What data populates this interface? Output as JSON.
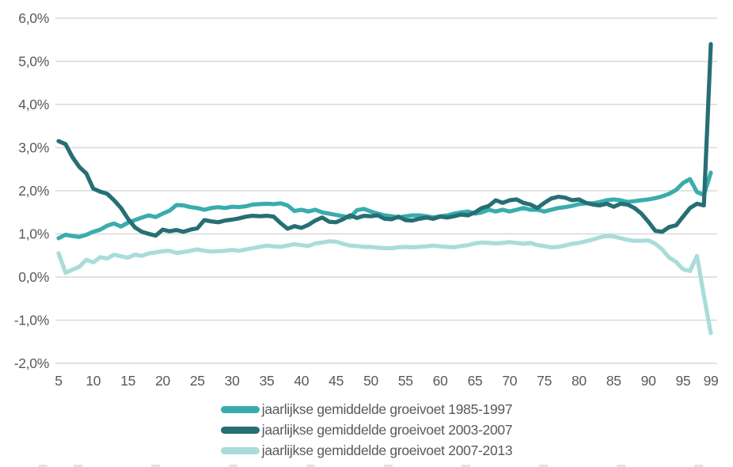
{
  "chart_data": {
    "type": "line",
    "title": "",
    "xlabel": "",
    "ylabel": "",
    "xlim": [
      5,
      99
    ],
    "ylim": [
      -2,
      6
    ],
    "grid": "horizontal-only",
    "legend_position": "bottom-center",
    "x_tick_values": [
      5,
      10,
      15,
      20,
      25,
      30,
      35,
      40,
      45,
      50,
      55,
      60,
      65,
      70,
      75,
      80,
      85,
      90,
      95,
      99
    ],
    "x_tick_labels": [
      "5",
      "10",
      "15",
      "20",
      "25",
      "30",
      "35",
      "40",
      "45",
      "50",
      "55",
      "60",
      "65",
      "70",
      "75",
      "80",
      "85",
      "90",
      "95",
      "99"
    ],
    "y_tick_values": [
      6,
      5,
      4,
      3,
      2,
      1,
      0,
      -1,
      -2
    ],
    "y_tick_labels": [
      "6,0%",
      "5,0%",
      "4,0%",
      "3,0%",
      "2,0%",
      "1,0%",
      "0,0%",
      "-1,0%",
      "-2,0%"
    ],
    "x": [
      5,
      6,
      7,
      8,
      9,
      10,
      11,
      12,
      13,
      14,
      15,
      16,
      17,
      18,
      19,
      20,
      21,
      22,
      23,
      24,
      25,
      26,
      27,
      28,
      29,
      30,
      31,
      32,
      33,
      34,
      35,
      36,
      37,
      38,
      39,
      40,
      41,
      42,
      43,
      44,
      45,
      46,
      47,
      48,
      49,
      50,
      51,
      52,
      53,
      54,
      55,
      56,
      57,
      58,
      59,
      60,
      61,
      62,
      63,
      64,
      65,
      66,
      67,
      68,
      69,
      70,
      71,
      72,
      73,
      74,
      75,
      76,
      77,
      78,
      79,
      80,
      81,
      82,
      83,
      84,
      85,
      86,
      87,
      88,
      89,
      90,
      91,
      92,
      93,
      94,
      95,
      96,
      97,
      98,
      99
    ],
    "series": [
      {
        "id": "groeivoet-1985-1997",
        "name": "jaarlijkse gemiddelde groeivoet 1985-1997",
        "color": "#3aacad",
        "values": [
          0.9,
          0.98,
          0.95,
          0.93,
          0.98,
          1.05,
          1.1,
          1.19,
          1.24,
          1.17,
          1.26,
          1.32,
          1.38,
          1.43,
          1.39,
          1.47,
          1.54,
          1.67,
          1.66,
          1.62,
          1.6,
          1.56,
          1.6,
          1.62,
          1.6,
          1.63,
          1.62,
          1.64,
          1.68,
          1.69,
          1.7,
          1.69,
          1.71,
          1.66,
          1.53,
          1.56,
          1.52,
          1.56,
          1.5,
          1.47,
          1.44,
          1.41,
          1.38,
          1.55,
          1.58,
          1.52,
          1.47,
          1.43,
          1.41,
          1.38,
          1.41,
          1.43,
          1.43,
          1.41,
          1.38,
          1.41,
          1.43,
          1.47,
          1.5,
          1.52,
          1.47,
          1.5,
          1.56,
          1.52,
          1.56,
          1.52,
          1.56,
          1.6,
          1.56,
          1.56,
          1.52,
          1.56,
          1.6,
          1.62,
          1.65,
          1.69,
          1.71,
          1.71,
          1.74,
          1.78,
          1.8,
          1.78,
          1.74,
          1.76,
          1.78,
          1.8,
          1.83,
          1.87,
          1.93,
          2.02,
          2.18,
          2.27,
          1.97,
          1.9,
          2.42
        ]
      },
      {
        "id": "groeivoet-2003-2007",
        "name": "jaarlijkse gemiddelde groeivoet 2003-2007",
        "color": "#266f74",
        "values": [
          3.15,
          3.08,
          2.78,
          2.55,
          2.4,
          2.05,
          1.98,
          1.93,
          1.78,
          1.6,
          1.35,
          1.15,
          1.05,
          1.0,
          0.96,
          1.1,
          1.06,
          1.09,
          1.05,
          1.1,
          1.13,
          1.32,
          1.29,
          1.27,
          1.31,
          1.33,
          1.36,
          1.4,
          1.42,
          1.41,
          1.42,
          1.4,
          1.25,
          1.12,
          1.18,
          1.14,
          1.21,
          1.31,
          1.38,
          1.28,
          1.27,
          1.34,
          1.43,
          1.37,
          1.42,
          1.41,
          1.43,
          1.35,
          1.34,
          1.4,
          1.32,
          1.31,
          1.35,
          1.38,
          1.35,
          1.4,
          1.38,
          1.41,
          1.45,
          1.43,
          1.5,
          1.6,
          1.65,
          1.78,
          1.72,
          1.78,
          1.8,
          1.72,
          1.68,
          1.6,
          1.72,
          1.82,
          1.86,
          1.84,
          1.78,
          1.8,
          1.72,
          1.68,
          1.66,
          1.7,
          1.63,
          1.7,
          1.68,
          1.6,
          1.47,
          1.28,
          1.07,
          1.05,
          1.16,
          1.2,
          1.4,
          1.6,
          1.7,
          1.66,
          5.4
        ]
      },
      {
        "id": "groeivoet-2007-2013",
        "name": "jaarlijkse gemiddelde groeivoet 2007-2013",
        "color": "#a9dcda",
        "values": [
          0.55,
          0.1,
          0.17,
          0.24,
          0.4,
          0.34,
          0.46,
          0.43,
          0.52,
          0.48,
          0.45,
          0.52,
          0.49,
          0.55,
          0.57,
          0.6,
          0.61,
          0.56,
          0.58,
          0.61,
          0.64,
          0.61,
          0.59,
          0.6,
          0.61,
          0.63,
          0.61,
          0.64,
          0.67,
          0.7,
          0.73,
          0.71,
          0.7,
          0.73,
          0.76,
          0.74,
          0.72,
          0.78,
          0.8,
          0.83,
          0.82,
          0.77,
          0.73,
          0.72,
          0.7,
          0.7,
          0.68,
          0.67,
          0.67,
          0.69,
          0.7,
          0.69,
          0.7,
          0.71,
          0.73,
          0.71,
          0.7,
          0.69,
          0.72,
          0.74,
          0.78,
          0.8,
          0.79,
          0.78,
          0.79,
          0.81,
          0.79,
          0.77,
          0.79,
          0.74,
          0.72,
          0.69,
          0.7,
          0.73,
          0.77,
          0.79,
          0.83,
          0.87,
          0.92,
          0.95,
          0.94,
          0.9,
          0.86,
          0.84,
          0.84,
          0.85,
          0.77,
          0.64,
          0.45,
          0.35,
          0.18,
          0.14,
          0.49,
          -0.43,
          -1.3
        ]
      }
    ]
  },
  "style": {
    "background": "#ffffff",
    "gridline_color": "#d8d8d8",
    "axis_label_color": "#58595b",
    "line_width": 5.2
  }
}
